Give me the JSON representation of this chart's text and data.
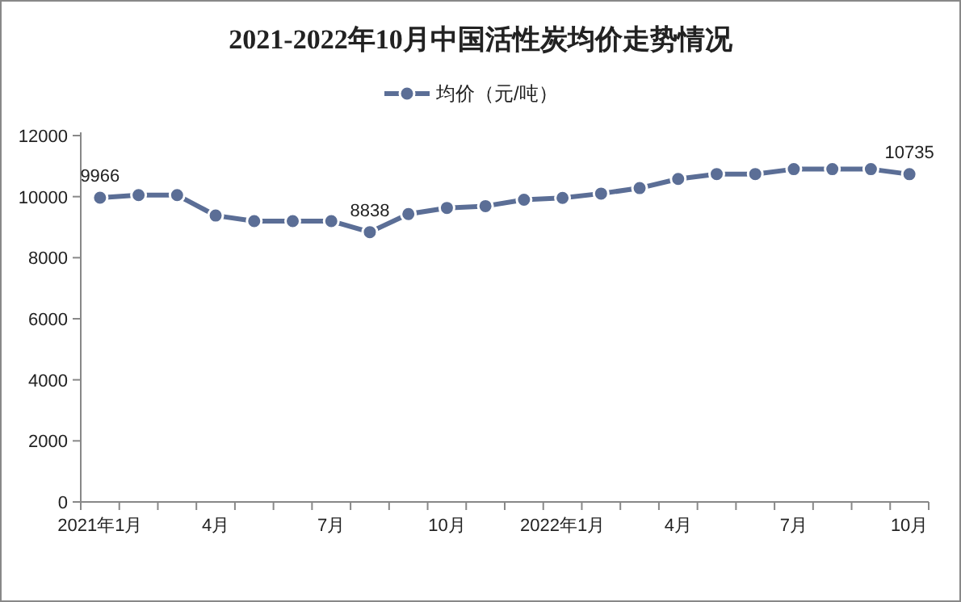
{
  "chart_data": {
    "type": "line",
    "title": "2021-2022年10月中国活性炭均价走势情况",
    "categories": [
      "2021年1月",
      null,
      null,
      "4月",
      null,
      null,
      "7月",
      null,
      null,
      "10月",
      null,
      null,
      "2022年1月",
      null,
      null,
      "4月",
      null,
      null,
      "7月",
      null,
      null,
      "10月"
    ],
    "series": [
      {
        "name": "均价（元/吨）",
        "color": "#5b6e96",
        "values": [
          9966,
          10050,
          10050,
          9380,
          9200,
          9200,
          9200,
          8838,
          9430,
          9630,
          9690,
          9900,
          9960,
          10100,
          10280,
          10580,
          10740,
          10740,
          10900,
          10900,
          10900,
          10735
        ],
        "value_labels": [
          "9966",
          null,
          null,
          null,
          null,
          null,
          null,
          "8838",
          null,
          null,
          null,
          null,
          null,
          null,
          null,
          null,
          null,
          null,
          null,
          null,
          null,
          "10735"
        ]
      }
    ],
    "ylim": [
      0,
      12000
    ],
    "yticks": [
      0,
      2000,
      4000,
      6000,
      8000,
      10000,
      12000
    ],
    "grid": false,
    "legend": "top",
    "marker": "circle",
    "line_style": "solid"
  }
}
